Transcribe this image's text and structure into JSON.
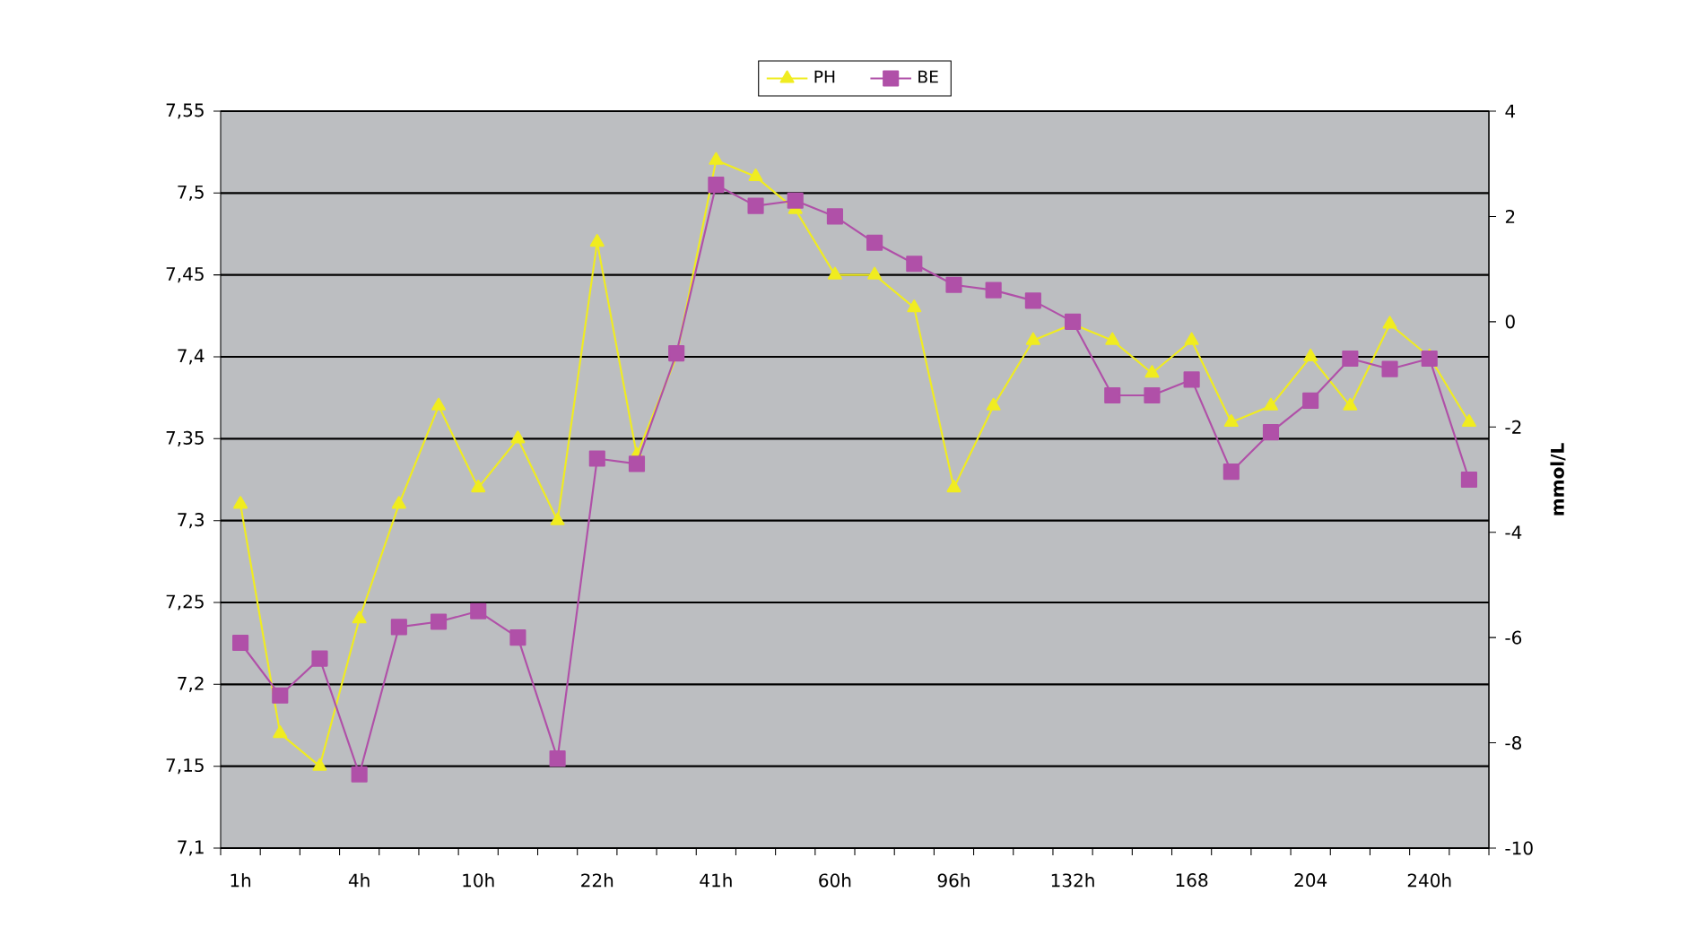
{
  "chart_data": {
    "type": "line",
    "categories": [
      "1h",
      null,
      null,
      "4h",
      null,
      null,
      "10h",
      null,
      null,
      "22h",
      null,
      null,
      "41h",
      null,
      null,
      "60h",
      null,
      null,
      "96h",
      null,
      null,
      "132h",
      null,
      null,
      "168",
      null,
      null,
      "204",
      null,
      null,
      "240h",
      null
    ],
    "series": [
      {
        "name": "PH",
        "color": "#f0ec20",
        "marker": "triangle",
        "values": [
          7.31,
          7.17,
          7.15,
          7.24,
          7.31,
          7.37,
          7.32,
          7.35,
          7.3,
          7.47,
          7.34,
          7.4,
          7.52,
          7.51,
          7.49,
          7.45,
          7.45,
          7.43,
          7.32,
          7.37,
          7.41,
          7.42,
          7.41,
          7.39,
          7.41,
          7.36,
          7.37,
          7.4,
          7.37,
          7.42,
          7.4,
          7.36
        ]
      },
      {
        "name": "BE",
        "color": "#b050a8",
        "marker": "square",
        "axis": "y2",
        "values": [
          -6.1,
          -7.1,
          -6.4,
          -8.6,
          -5.8,
          -5.7,
          -5.5,
          -6.0,
          -8.3,
          -2.6,
          -2.7,
          -0.6,
          2.6,
          2.2,
          2.3,
          2.0,
          1.5,
          1.1,
          0.7,
          0.6,
          0.4,
          0.0,
          -1.4,
          -1.4,
          -1.1,
          -2.85,
          -2.1,
          -1.5,
          -0.7,
          -0.9,
          -0.7,
          -3.0
        ]
      }
    ],
    "ylim": [
      7.1,
      7.55
    ],
    "yticks": [
      {
        "value": 7.1,
        "label": "7,1"
      },
      {
        "value": 7.15,
        "label": "7,15"
      },
      {
        "value": 7.2,
        "label": "7,2"
      },
      {
        "value": 7.25,
        "label": "7,25"
      },
      {
        "value": 7.3,
        "label": "7,3"
      },
      {
        "value": 7.35,
        "label": "7,35"
      },
      {
        "value": 7.4,
        "label": "7,4"
      },
      {
        "value": 7.45,
        "label": "7,45"
      },
      {
        "value": 7.5,
        "label": "7,5"
      },
      {
        "value": 7.55,
        "label": "7,55"
      }
    ],
    "y2lim": [
      -10,
      4
    ],
    "y2ticks": [
      -10,
      -8,
      -6,
      -4,
      -2,
      0,
      2,
      4
    ],
    "y2label": "mmol/L",
    "grid": "y",
    "legend": "top"
  }
}
